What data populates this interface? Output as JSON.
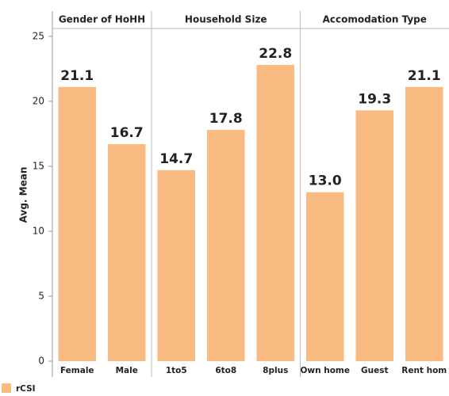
{
  "chart_data": {
    "type": "bar",
    "ylabel": "Avg. Mean",
    "ylim": [
      0,
      25.6
    ],
    "yticks": [
      0,
      5,
      10,
      15,
      20,
      25
    ],
    "color": "#f9bb82",
    "legend": {
      "name": "rCSI",
      "position": "bottom-left"
    },
    "panels": [
      {
        "title": "Gender of HoHH",
        "categories": [
          "Female",
          "Male"
        ],
        "values": [
          21.1,
          16.7
        ],
        "value_labels": [
          "21.1",
          "16.7"
        ]
      },
      {
        "title": "Household Size",
        "categories": [
          "1to5",
          "6to8",
          "8plus"
        ],
        "values": [
          14.7,
          17.8,
          22.8
        ],
        "value_labels": [
          "14.7",
          "17.8",
          "22.8"
        ]
      },
      {
        "title": "Accomodation Type",
        "categories": [
          "Own home",
          "Guest",
          "Rent hom"
        ],
        "values": [
          13.0,
          19.3,
          21.1
        ],
        "value_labels": [
          "13.0",
          "19.3",
          "21.1"
        ]
      }
    ]
  }
}
